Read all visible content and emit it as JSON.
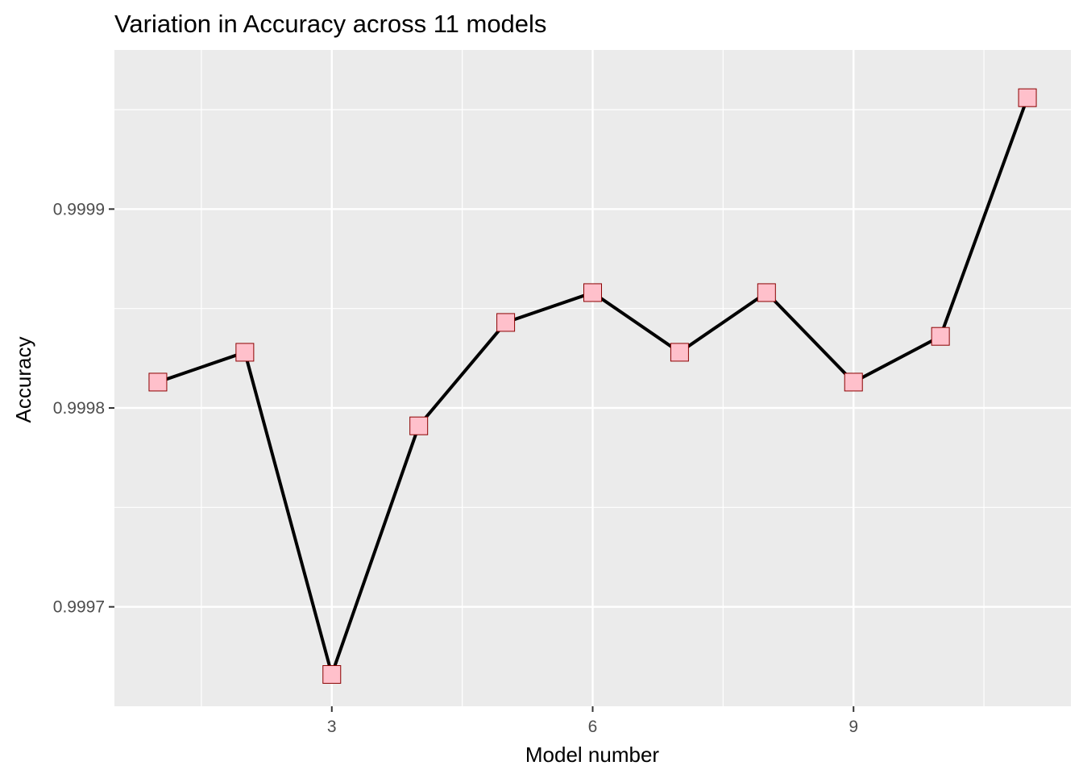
{
  "chart_data": {
    "type": "line",
    "title": "Variation in Accuracy across 11 models",
    "xlabel": "Model number",
    "ylabel": "Accuracy",
    "x": [
      1,
      2,
      3,
      4,
      5,
      6,
      7,
      8,
      9,
      10,
      11
    ],
    "series": [
      {
        "values": [
          0.999813,
          0.999828,
          0.999666,
          0.999791,
          0.999843,
          0.999858,
          0.999828,
          0.999858,
          0.999813,
          0.999836,
          0.999956
        ]
      }
    ],
    "x_ticks": [
      3,
      6,
      9
    ],
    "x_tick_labels": [
      "3",
      "6",
      "9"
    ],
    "y_ticks": [
      0.9997,
      0.9998,
      0.9999
    ],
    "y_tick_labels": [
      "0.9997",
      "0.9998",
      "0.9999"
    ],
    "xlim": [
      0.5,
      11.5
    ],
    "ylim": [
      0.99965,
      0.99998
    ],
    "grid": true,
    "marker": "square",
    "colors": {
      "panel": "#ebebeb",
      "grid_major": "#ffffff",
      "line": "#000000",
      "marker_fill": "#ffc0cb",
      "marker_stroke": "#8b0000",
      "tick_text": "#4d4d4d"
    }
  }
}
